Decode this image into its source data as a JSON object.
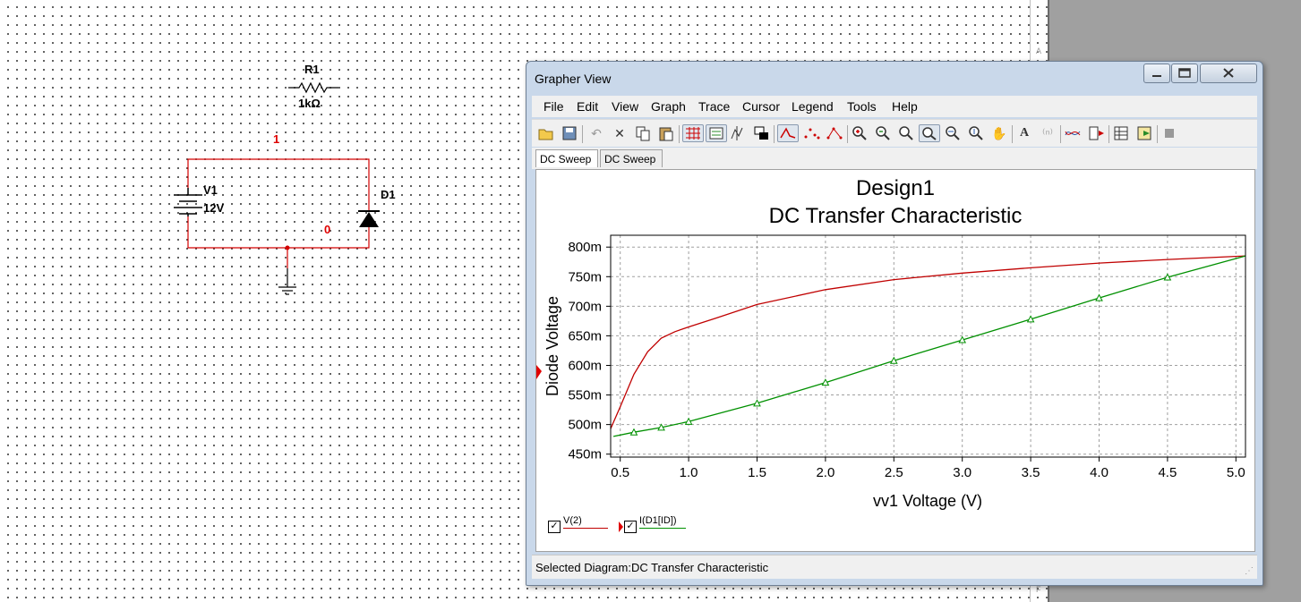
{
  "schematic": {
    "r1_ref": "R1",
    "r1_value": "1kΩ",
    "v1_ref": "V1",
    "v1_value": "12V",
    "d1_ref": "D1",
    "net_1": "1",
    "net_0": "0",
    "ruler_top": "A",
    "ruler_bottom": "F"
  },
  "window": {
    "title": "Grapher View",
    "menu": [
      "File",
      "Edit",
      "View",
      "Graph",
      "Trace",
      "Cursor",
      "Legend",
      "Tools",
      "Help"
    ],
    "tabs": [
      "DC Sweep",
      "DC Sweep"
    ],
    "status": "Selected Diagram:DC Transfer Characteristic"
  },
  "colors": {
    "wire": "#d40000",
    "trace_v2": "#c00000",
    "trace_id": "#009000",
    "grid": "#a0a0a0"
  },
  "chart_data": {
    "type": "line",
    "title": "Design1",
    "subtitle": "DC Transfer Characteristic",
    "xlabel": "vv1 Voltage (V)",
    "ylabel": "Diode Voltage",
    "xlim": [
      0.43,
      5.07
    ],
    "ylim": [
      0.445,
      0.82
    ],
    "x_ticks": [
      {
        "v": 0.5,
        "label": "0.5"
      },
      {
        "v": 1.0,
        "label": "1.0"
      },
      {
        "v": 1.5,
        "label": "1.5"
      },
      {
        "v": 2.0,
        "label": "2.0"
      },
      {
        "v": 2.5,
        "label": "2.5"
      },
      {
        "v": 3.0,
        "label": "3.0"
      },
      {
        "v": 3.5,
        "label": "3.5"
      },
      {
        "v": 4.0,
        "label": "4.0"
      },
      {
        "v": 4.5,
        "label": "4.5"
      },
      {
        "v": 5.0,
        "label": "5.0"
      }
    ],
    "y_ticks": [
      {
        "v": 0.45,
        "label": "450m"
      },
      {
        "v": 0.5,
        "label": "500m"
      },
      {
        "v": 0.55,
        "label": "550m"
      },
      {
        "v": 0.6,
        "label": "600m"
      },
      {
        "v": 0.65,
        "label": "650m"
      },
      {
        "v": 0.7,
        "label": "700m"
      },
      {
        "v": 0.75,
        "label": "750m"
      },
      {
        "v": 0.8,
        "label": "800m"
      }
    ],
    "grid": true,
    "legend_position": "bottom-left",
    "series": [
      {
        "name": "V(2)",
        "marker": "none",
        "x": [
          0.43,
          0.5,
          0.6,
          0.7,
          0.8,
          0.9,
          1.0,
          1.2,
          1.5,
          2.0,
          2.5,
          3.0,
          3.5,
          4.0,
          4.5,
          5.07
        ],
        "y": [
          0.493,
          0.53,
          0.585,
          0.623,
          0.646,
          0.657,
          0.665,
          0.68,
          0.703,
          0.728,
          0.745,
          0.756,
          0.765,
          0.773,
          0.779,
          0.785
        ]
      },
      {
        "name": "I(D1[ID])",
        "marker": "triangle",
        "x": [
          0.45,
          0.6,
          0.8,
          1.0,
          1.5,
          2.0,
          2.5,
          3.0,
          3.5,
          4.0,
          4.5,
          5.07
        ],
        "y": [
          0.48,
          0.487,
          0.495,
          0.505,
          0.536,
          0.571,
          0.608,
          0.643,
          0.678,
          0.714,
          0.749,
          0.785
        ]
      }
    ]
  }
}
